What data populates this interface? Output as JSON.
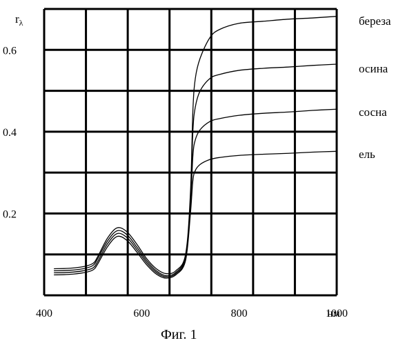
{
  "chart_data": {
    "type": "line",
    "title": "",
    "caption": "Фиг. 1",
    "ylabel": "r",
    "ylabel_subscript": "λ",
    "x_unit": "нм",
    "xlim": [
      400,
      1000
    ],
    "ylim": [
      0,
      0.7
    ],
    "x_ticks": [
      {
        "value": 400,
        "label": "400"
      },
      {
        "value": 600,
        "label": "600"
      },
      {
        "value": 800,
        "label": "800"
      },
      {
        "value": 1000,
        "label": "1000"
      }
    ],
    "y_ticks": [
      {
        "value": 0.2,
        "label": "0.2"
      },
      {
        "value": 0.4,
        "label": "0.4"
      },
      {
        "value": 0.6,
        "label": "0.6"
      }
    ],
    "grid": true,
    "series": [
      {
        "name": "береза",
        "x": [
          420,
          450,
          480,
          500,
          510,
          530,
          550,
          570,
          590,
          610,
          630,
          650,
          670,
          690,
          700,
          705,
          710,
          720,
          740,
          760,
          800,
          850,
          900,
          950,
          1000
        ],
        "y": [
          0.065,
          0.066,
          0.07,
          0.078,
          0.095,
          0.14,
          0.165,
          0.155,
          0.125,
          0.09,
          0.065,
          0.053,
          0.06,
          0.1,
          0.25,
          0.45,
          0.53,
          0.58,
          0.63,
          0.65,
          0.665,
          0.67,
          0.675,
          0.678,
          0.682
        ]
      },
      {
        "name": "осина",
        "x": [
          420,
          450,
          480,
          500,
          510,
          530,
          550,
          570,
          590,
          610,
          630,
          650,
          670,
          690,
          700,
          705,
          710,
          720,
          740,
          760,
          800,
          850,
          900,
          950,
          1000
        ],
        "y": [
          0.06,
          0.061,
          0.065,
          0.073,
          0.09,
          0.133,
          0.158,
          0.148,
          0.118,
          0.085,
          0.06,
          0.048,
          0.056,
          0.095,
          0.23,
          0.4,
          0.46,
          0.5,
          0.53,
          0.54,
          0.55,
          0.555,
          0.558,
          0.562,
          0.565
        ]
      },
      {
        "name": "сосна",
        "x": [
          420,
          450,
          480,
          500,
          510,
          530,
          550,
          570,
          590,
          610,
          630,
          650,
          670,
          690,
          700,
          705,
          710,
          720,
          740,
          760,
          800,
          850,
          900,
          950,
          1000
        ],
        "y": [
          0.055,
          0.056,
          0.06,
          0.067,
          0.083,
          0.126,
          0.151,
          0.141,
          0.112,
          0.08,
          0.056,
          0.045,
          0.053,
          0.09,
          0.22,
          0.34,
          0.38,
          0.405,
          0.425,
          0.432,
          0.44,
          0.445,
          0.448,
          0.452,
          0.455
        ]
      },
      {
        "name": "ель",
        "x": [
          420,
          450,
          480,
          500,
          510,
          530,
          550,
          570,
          590,
          610,
          630,
          650,
          670,
          690,
          700,
          705,
          710,
          720,
          740,
          760,
          800,
          850,
          900,
          950,
          1000
        ],
        "y": [
          0.05,
          0.051,
          0.055,
          0.062,
          0.077,
          0.119,
          0.144,
          0.134,
          0.106,
          0.075,
          0.052,
          0.042,
          0.05,
          0.085,
          0.2,
          0.28,
          0.305,
          0.32,
          0.332,
          0.337,
          0.342,
          0.345,
          0.347,
          0.35,
          0.352
        ]
      }
    ]
  }
}
